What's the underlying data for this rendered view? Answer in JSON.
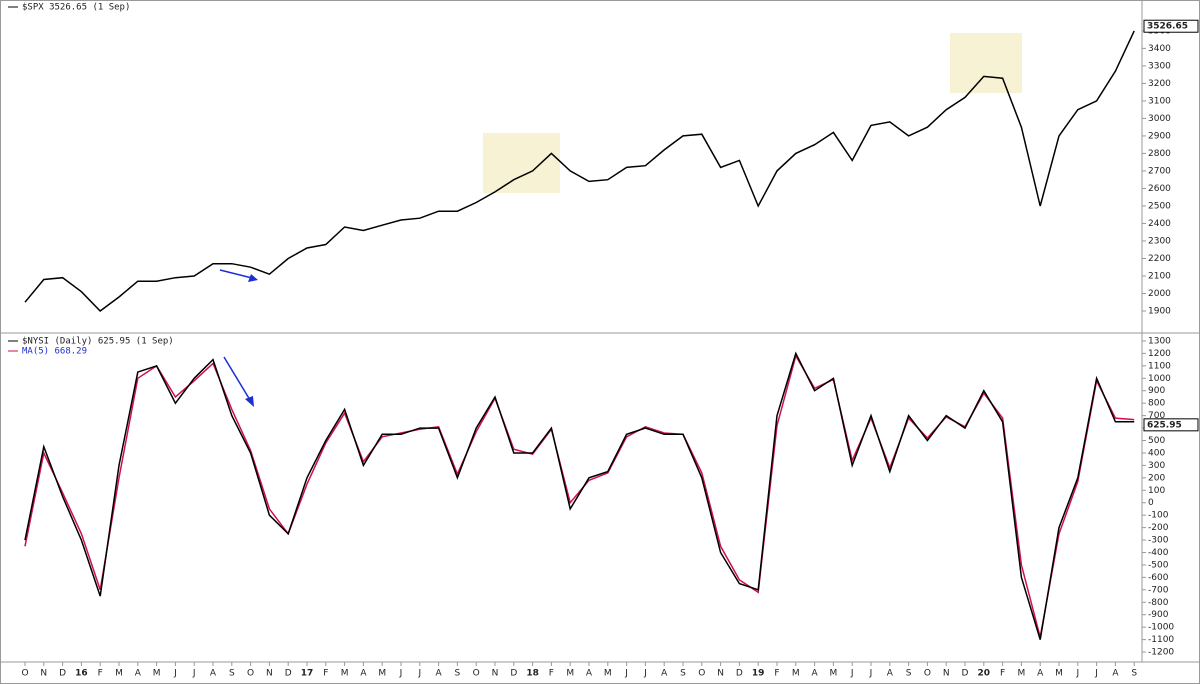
{
  "chart_data": [
    {
      "type": "line",
      "title": "$SPX 3526.65 (1 Sep)",
      "last_value": 3526.65,
      "last_value_label": "3526.65",
      "ylim": [
        1780,
        3665
      ],
      "yticks": [
        1900,
        2000,
        2100,
        2200,
        2300,
        2400,
        2500,
        2600,
        2700,
        2800,
        2900,
        3000,
        3100,
        3200,
        3300,
        3400,
        3500
      ],
      "series": [
        {
          "name": "$SPX",
          "color": "#000000",
          "values": [
            1950,
            2080,
            2090,
            2010,
            1900,
            1980,
            2070,
            2070,
            2090,
            2100,
            2170,
            2170,
            2150,
            2110,
            2200,
            2260,
            2280,
            2380,
            2360,
            2390,
            2420,
            2430,
            2470,
            2470,
            2520,
            2580,
            2650,
            2700,
            2800,
            2700,
            2640,
            2650,
            2720,
            2730,
            2820,
            2900,
            2910,
            2720,
            2760,
            2500,
            2700,
            2800,
            2850,
            2920,
            2760,
            2960,
            2980,
            2900,
            2950,
            3050,
            3120,
            3240,
            3230,
            2950,
            2500,
            2900,
            3050,
            3100,
            3270,
            3500
          ]
        }
      ],
      "grid": false
    },
    {
      "type": "line",
      "last_value": 625.95,
      "last_value_label": "625.95",
      "categories": [
        "O",
        "N",
        "D",
        "16",
        "F",
        "M",
        "A",
        "M",
        "J",
        "J",
        "A",
        "S",
        "O",
        "N",
        "D",
        "17",
        "F",
        "M",
        "A",
        "M",
        "J",
        "J",
        "A",
        "S",
        "O",
        "N",
        "D",
        "18",
        "F",
        "M",
        "A",
        "M",
        "J",
        "J",
        "A",
        "S",
        "O",
        "N",
        "D",
        "19",
        "F",
        "M",
        "A",
        "M",
        "J",
        "J",
        "A",
        "S",
        "O",
        "N",
        "D",
        "20",
        "F",
        "M",
        "A",
        "M",
        "J",
        "J",
        "A",
        "S"
      ],
      "ylim": [
        -1280,
        1356
      ],
      "yticks": [
        -1200,
        -1100,
        -1000,
        -900,
        -800,
        -700,
        -600,
        -500,
        -400,
        -300,
        -200,
        -100,
        0,
        100,
        200,
        300,
        400,
        500,
        600,
        700,
        800,
        900,
        1000,
        1100,
        1200,
        1300
      ],
      "series": [
        {
          "name": "$NYSI (Daily) 625.95 (1 Sep)",
          "color": "#000000",
          "values": [
            -300,
            450,
            50,
            -300,
            -750,
            300,
            1050,
            1100,
            800,
            1000,
            1150,
            700,
            400,
            -100,
            -250,
            200,
            500,
            750,
            300,
            550,
            550,
            600,
            600,
            200,
            600,
            850,
            400,
            400,
            600,
            -50,
            200,
            250,
            550,
            600,
            550,
            550,
            200,
            -400,
            -650,
            -700,
            700,
            1200,
            900,
            1000,
            300,
            700,
            250,
            700,
            500,
            700,
            600,
            900,
            650,
            -600,
            -1100,
            -200,
            200,
            1000,
            650,
            650
          ]
        },
        {
          "name": "MA(5) 668.29",
          "color": "#d0104c",
          "values": [
            -350,
            400,
            80,
            -250,
            -700,
            200,
            1000,
            1100,
            850,
            980,
            1120,
            750,
            420,
            -50,
            -250,
            150,
            480,
            720,
            330,
            530,
            560,
            590,
            610,
            230,
            570,
            840,
            430,
            390,
            590,
            0,
            180,
            240,
            530,
            610,
            560,
            550,
            240,
            -350,
            -620,
            -720,
            620,
            1180,
            920,
            990,
            340,
            680,
            280,
            680,
            520,
            690,
            610,
            880,
            680,
            -500,
            -1080,
            -250,
            170,
            980,
            680,
            668.29
          ]
        }
      ],
      "grid": false
    }
  ]
}
